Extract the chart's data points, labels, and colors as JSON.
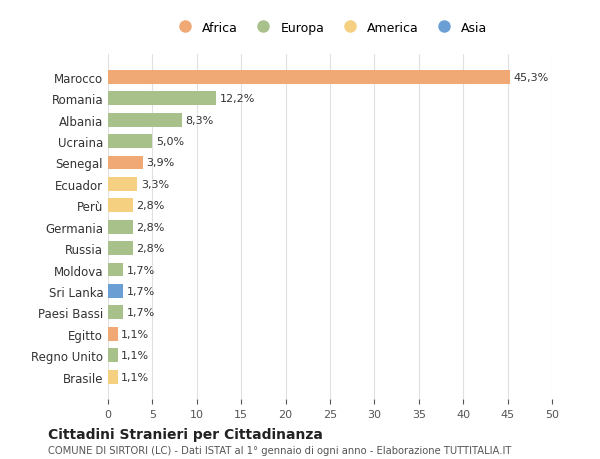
{
  "countries": [
    "Marocco",
    "Romania",
    "Albania",
    "Ucraina",
    "Senegal",
    "Ecuador",
    "Perù",
    "Germania",
    "Russia",
    "Moldova",
    "Sri Lanka",
    "Paesi Bassi",
    "Egitto",
    "Regno Unito",
    "Brasile"
  ],
  "values": [
    45.3,
    12.2,
    8.3,
    5.0,
    3.9,
    3.3,
    2.8,
    2.8,
    2.8,
    1.7,
    1.7,
    1.7,
    1.1,
    1.1,
    1.1
  ],
  "labels": [
    "45,3%",
    "12,2%",
    "8,3%",
    "5,0%",
    "3,9%",
    "3,3%",
    "2,8%",
    "2,8%",
    "2,8%",
    "1,7%",
    "1,7%",
    "1,7%",
    "1,1%",
    "1,1%",
    "1,1%"
  ],
  "colors": [
    "#F0A875",
    "#A8C08A",
    "#A8C08A",
    "#A8C08A",
    "#F0A875",
    "#F5D080",
    "#F5D080",
    "#A8C08A",
    "#A8C08A",
    "#A8C08A",
    "#6B9FD4",
    "#A8C08A",
    "#F0A875",
    "#A8C08A",
    "#F5D080"
  ],
  "continents": [
    "Africa",
    "Europa",
    "America",
    "Asia"
  ],
  "legend_colors": [
    "#F0A875",
    "#A8C08A",
    "#F5D080",
    "#6B9FD4"
  ],
  "xlim": [
    0,
    50
  ],
  "xticks": [
    0,
    5,
    10,
    15,
    20,
    25,
    30,
    35,
    40,
    45,
    50
  ],
  "title": "Cittadini Stranieri per Cittadinanza",
  "subtitle": "COMUNE DI SIRTORI (LC) - Dati ISTAT al 1° gennaio di ogni anno - Elaborazione TUTTITALIA.IT",
  "background_color": "#ffffff",
  "grid_color": "#e0e0e0",
  "bar_height": 0.65
}
